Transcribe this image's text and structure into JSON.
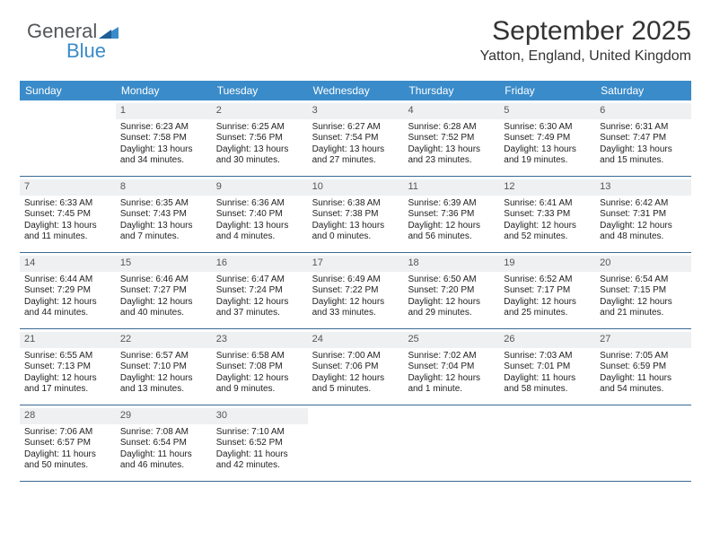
{
  "logo": {
    "line1": "General",
    "line2": "Blue"
  },
  "header": {
    "title": "September 2025",
    "subtitle": "Yatton, England, United Kingdom"
  },
  "colors": {
    "header_bg": "#3a8bc9",
    "daynum_bg": "#eef0f1",
    "rule": "#3a6a94",
    "logo_gray": "#54575a"
  },
  "dayNames": [
    "Sunday",
    "Monday",
    "Tuesday",
    "Wednesday",
    "Thursday",
    "Friday",
    "Saturday"
  ],
  "weeks": [
    [
      {
        "num": "",
        "blank": true
      },
      {
        "num": "1",
        "sunrise": "Sunrise: 6:23 AM",
        "sunset": "Sunset: 7:58 PM",
        "daylight1": "Daylight: 13 hours",
        "daylight2": "and 34 minutes."
      },
      {
        "num": "2",
        "sunrise": "Sunrise: 6:25 AM",
        "sunset": "Sunset: 7:56 PM",
        "daylight1": "Daylight: 13 hours",
        "daylight2": "and 30 minutes."
      },
      {
        "num": "3",
        "sunrise": "Sunrise: 6:27 AM",
        "sunset": "Sunset: 7:54 PM",
        "daylight1": "Daylight: 13 hours",
        "daylight2": "and 27 minutes."
      },
      {
        "num": "4",
        "sunrise": "Sunrise: 6:28 AM",
        "sunset": "Sunset: 7:52 PM",
        "daylight1": "Daylight: 13 hours",
        "daylight2": "and 23 minutes."
      },
      {
        "num": "5",
        "sunrise": "Sunrise: 6:30 AM",
        "sunset": "Sunset: 7:49 PM",
        "daylight1": "Daylight: 13 hours",
        "daylight2": "and 19 minutes."
      },
      {
        "num": "6",
        "sunrise": "Sunrise: 6:31 AM",
        "sunset": "Sunset: 7:47 PM",
        "daylight1": "Daylight: 13 hours",
        "daylight2": "and 15 minutes."
      }
    ],
    [
      {
        "num": "7",
        "sunrise": "Sunrise: 6:33 AM",
        "sunset": "Sunset: 7:45 PM",
        "daylight1": "Daylight: 13 hours",
        "daylight2": "and 11 minutes."
      },
      {
        "num": "8",
        "sunrise": "Sunrise: 6:35 AM",
        "sunset": "Sunset: 7:43 PM",
        "daylight1": "Daylight: 13 hours",
        "daylight2": "and 7 minutes."
      },
      {
        "num": "9",
        "sunrise": "Sunrise: 6:36 AM",
        "sunset": "Sunset: 7:40 PM",
        "daylight1": "Daylight: 13 hours",
        "daylight2": "and 4 minutes."
      },
      {
        "num": "10",
        "sunrise": "Sunrise: 6:38 AM",
        "sunset": "Sunset: 7:38 PM",
        "daylight1": "Daylight: 13 hours",
        "daylight2": "and 0 minutes."
      },
      {
        "num": "11",
        "sunrise": "Sunrise: 6:39 AM",
        "sunset": "Sunset: 7:36 PM",
        "daylight1": "Daylight: 12 hours",
        "daylight2": "and 56 minutes."
      },
      {
        "num": "12",
        "sunrise": "Sunrise: 6:41 AM",
        "sunset": "Sunset: 7:33 PM",
        "daylight1": "Daylight: 12 hours",
        "daylight2": "and 52 minutes."
      },
      {
        "num": "13",
        "sunrise": "Sunrise: 6:42 AM",
        "sunset": "Sunset: 7:31 PM",
        "daylight1": "Daylight: 12 hours",
        "daylight2": "and 48 minutes."
      }
    ],
    [
      {
        "num": "14",
        "sunrise": "Sunrise: 6:44 AM",
        "sunset": "Sunset: 7:29 PM",
        "daylight1": "Daylight: 12 hours",
        "daylight2": "and 44 minutes."
      },
      {
        "num": "15",
        "sunrise": "Sunrise: 6:46 AM",
        "sunset": "Sunset: 7:27 PM",
        "daylight1": "Daylight: 12 hours",
        "daylight2": "and 40 minutes."
      },
      {
        "num": "16",
        "sunrise": "Sunrise: 6:47 AM",
        "sunset": "Sunset: 7:24 PM",
        "daylight1": "Daylight: 12 hours",
        "daylight2": "and 37 minutes."
      },
      {
        "num": "17",
        "sunrise": "Sunrise: 6:49 AM",
        "sunset": "Sunset: 7:22 PM",
        "daylight1": "Daylight: 12 hours",
        "daylight2": "and 33 minutes."
      },
      {
        "num": "18",
        "sunrise": "Sunrise: 6:50 AM",
        "sunset": "Sunset: 7:20 PM",
        "daylight1": "Daylight: 12 hours",
        "daylight2": "and 29 minutes."
      },
      {
        "num": "19",
        "sunrise": "Sunrise: 6:52 AM",
        "sunset": "Sunset: 7:17 PM",
        "daylight1": "Daylight: 12 hours",
        "daylight2": "and 25 minutes."
      },
      {
        "num": "20",
        "sunrise": "Sunrise: 6:54 AM",
        "sunset": "Sunset: 7:15 PM",
        "daylight1": "Daylight: 12 hours",
        "daylight2": "and 21 minutes."
      }
    ],
    [
      {
        "num": "21",
        "sunrise": "Sunrise: 6:55 AM",
        "sunset": "Sunset: 7:13 PM",
        "daylight1": "Daylight: 12 hours",
        "daylight2": "and 17 minutes."
      },
      {
        "num": "22",
        "sunrise": "Sunrise: 6:57 AM",
        "sunset": "Sunset: 7:10 PM",
        "daylight1": "Daylight: 12 hours",
        "daylight2": "and 13 minutes."
      },
      {
        "num": "23",
        "sunrise": "Sunrise: 6:58 AM",
        "sunset": "Sunset: 7:08 PM",
        "daylight1": "Daylight: 12 hours",
        "daylight2": "and 9 minutes."
      },
      {
        "num": "24",
        "sunrise": "Sunrise: 7:00 AM",
        "sunset": "Sunset: 7:06 PM",
        "daylight1": "Daylight: 12 hours",
        "daylight2": "and 5 minutes."
      },
      {
        "num": "25",
        "sunrise": "Sunrise: 7:02 AM",
        "sunset": "Sunset: 7:04 PM",
        "daylight1": "Daylight: 12 hours",
        "daylight2": "and 1 minute."
      },
      {
        "num": "26",
        "sunrise": "Sunrise: 7:03 AM",
        "sunset": "Sunset: 7:01 PM",
        "daylight1": "Daylight: 11 hours",
        "daylight2": "and 58 minutes."
      },
      {
        "num": "27",
        "sunrise": "Sunrise: 7:05 AM",
        "sunset": "Sunset: 6:59 PM",
        "daylight1": "Daylight: 11 hours",
        "daylight2": "and 54 minutes."
      }
    ],
    [
      {
        "num": "28",
        "sunrise": "Sunrise: 7:06 AM",
        "sunset": "Sunset: 6:57 PM",
        "daylight1": "Daylight: 11 hours",
        "daylight2": "and 50 minutes."
      },
      {
        "num": "29",
        "sunrise": "Sunrise: 7:08 AM",
        "sunset": "Sunset: 6:54 PM",
        "daylight1": "Daylight: 11 hours",
        "daylight2": "and 46 minutes."
      },
      {
        "num": "30",
        "sunrise": "Sunrise: 7:10 AM",
        "sunset": "Sunset: 6:52 PM",
        "daylight1": "Daylight: 11 hours",
        "daylight2": "and 42 minutes."
      },
      {
        "num": "",
        "blank": true
      },
      {
        "num": "",
        "blank": true
      },
      {
        "num": "",
        "blank": true
      },
      {
        "num": "",
        "blank": true
      }
    ]
  ]
}
